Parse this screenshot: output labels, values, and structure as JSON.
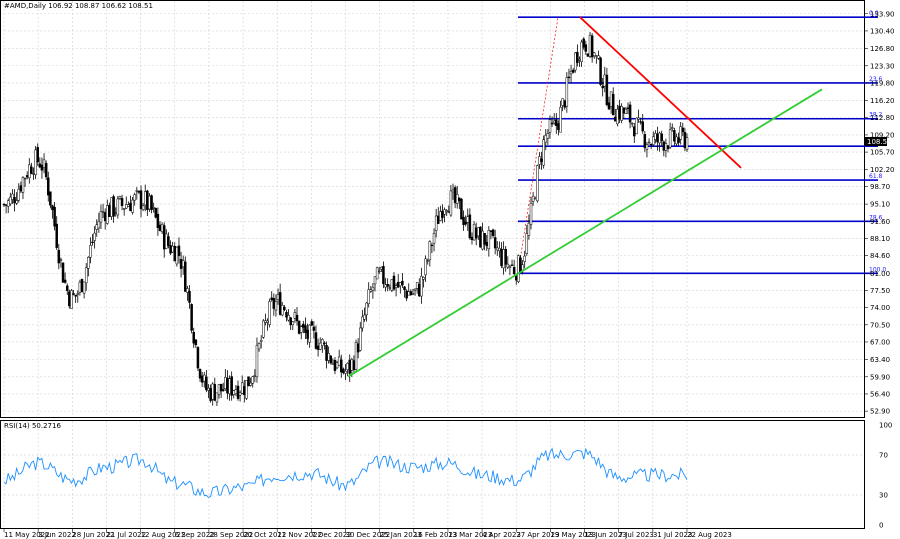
{
  "header": {
    "title": "#AMD,Daily  106.92 108.87 106.62 108.51",
    "rsi_label": "RSI(14) 50.2716"
  },
  "price_axis": {
    "ticks": [
      "133.90",
      "130.40",
      "126.80",
      "123.30",
      "119.80",
      "116.20",
      "112.80",
      "109.20",
      "105.70",
      "102.20",
      "98.70",
      "95.10",
      "91.60",
      "88.10",
      "84.60",
      "81.00",
      "77.50",
      "74.00",
      "70.50",
      "67.00",
      "63.40",
      "59.90",
      "56.40",
      "52.90"
    ],
    "current_price": "108.51"
  },
  "rsi_axis": {
    "ticks": [
      "100",
      "70",
      "30",
      "0"
    ]
  },
  "time_axis": {
    "labels": [
      "11 May 2022",
      "3 Jun 2022",
      "28 Jun 2022",
      "21 Jul 2022",
      "12 Aug 2022",
      "6 Sep 2022",
      "28 Sep 2022",
      "20 Oct 2022",
      "11 Nov 2022",
      "7 Dec 2022",
      "30 Dec 2022",
      "25 Jan 2023",
      "16 Feb 2023",
      "13 Mar 2023",
      "4 Apr 2023",
      "27 Apr 2023",
      "19 May 2023",
      "13 Jun 2023",
      "7 Jul 2023",
      "31 Jul 2023",
      "22 Aug 2023"
    ]
  },
  "fibonacci": {
    "levels": [
      {
        "label": "0.0",
        "price": 133.2
      },
      {
        "label": "23.6",
        "price": 119.8
      },
      {
        "label": "38.2",
        "price": 112.5
      },
      {
        "label": "50.0",
        "price": 106.9
      },
      {
        "label": "61.8",
        "price": 100.0
      },
      {
        "label": "78.6",
        "price": 91.6
      },
      {
        "label": "100.0",
        "price": 81.0
      }
    ]
  },
  "colors": {
    "fib": "#0000cd",
    "resistance": "#ff0000",
    "support": "#32cd32",
    "rsi": "#1e90ff",
    "grid": "#d3d3d3",
    "candle": "#000000"
  },
  "chart_data": [
    {
      "type": "candlestick",
      "title": "#AMD,Daily",
      "ylim": [
        51.5,
        136.5
      ],
      "x": [
        "11 May 2022",
        "3 Jun 2022",
        "28 Jun 2022",
        "21 Jul 2022",
        "12 Aug 2022",
        "6 Sep 2022",
        "28 Sep 2022",
        "20 Oct 2022",
        "11 Nov 2022",
        "7 Dec 2022",
        "30 Dec 2022",
        "25 Jan 2023",
        "16 Feb 2023",
        "13 Mar 2023",
        "4 Apr 2023",
        "27 Apr 2023",
        "19 May 2023",
        "13 Jun 2023",
        "7 Jul 2023",
        "31 Jul 2023",
        "22 Aug 2023"
      ],
      "series": [
        {
          "values": [
            95.0,
            104.0,
            76.0,
            94.0,
            96.0,
            86.0,
            57.0,
            58.0,
            75.0,
            68.0,
            61.0,
            80.0,
            77.0,
            96.0,
            88.0,
            82.0,
            110.0,
            128.0,
            114.0,
            108.0,
            108.5
          ]
        }
      ],
      "lines": [
        {
          "from": [
            "13 Jun 2023",
            133.2
          ],
          "to": [
            "22 Aug 2023",
            102.5
          ]
        },
        {
          "from": [
            "30 Dec 2022",
            59.9
          ],
          "to": [
            "22 Aug 2023",
            118.5
          ]
        }
      ]
    },
    {
      "type": "line",
      "ylim": [
        0,
        100
      ],
      "yticks": [
        100,
        70,
        30,
        0
      ],
      "x": [
        "11 May 2022",
        "3 Jun 2022",
        "28 Jun 2022",
        "21 Jul 2022",
        "12 Aug 2022",
        "6 Sep 2022",
        "28 Sep 2022",
        "20 Oct 2022",
        "11 Nov 2022",
        "7 Dec 2022",
        "30 Dec 2022",
        "25 Jan 2023",
        "16 Feb 2023",
        "13 Mar 2023",
        "4 Apr 2023",
        "27 Apr 2023",
        "19 May 2023",
        "13 Jun 2023",
        "7 Jul 2023",
        "31 Jul 2023",
        "22 Aug 2023"
      ],
      "series": [
        {
          "values": [
            45,
            62,
            45,
            58,
            65,
            42,
            32,
            38,
            50,
            52,
            40,
            63,
            58,
            62,
            50,
            45,
            70,
            72,
            48,
            50,
            50
          ]
        }
      ]
    }
  ]
}
